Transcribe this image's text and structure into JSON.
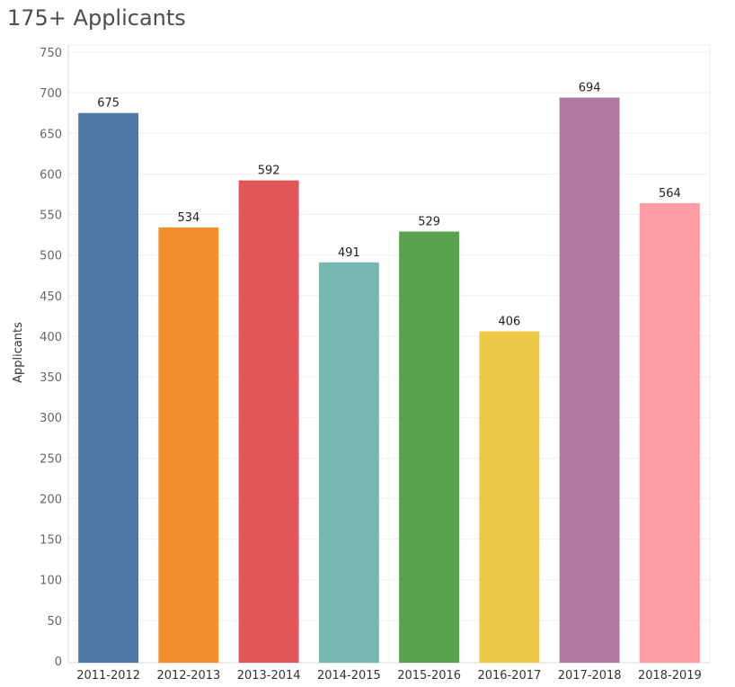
{
  "header": {
    "title": "175+ Applicants"
  },
  "chart_data": {
    "type": "bar",
    "title": "175+ Applicants",
    "xlabel": "",
    "ylabel": "Applicants",
    "ylim": [
      0,
      750
    ],
    "yticks": [
      0,
      50,
      100,
      150,
      200,
      250,
      300,
      350,
      400,
      450,
      500,
      550,
      600,
      650,
      700,
      750
    ],
    "grid": true,
    "categories": [
      "2011-2012",
      "2012-2013",
      "2013-2014",
      "2014-2015",
      "2015-2016",
      "2016-2017",
      "2017-2018",
      "2018-2019"
    ],
    "values": [
      675,
      534,
      592,
      491,
      529,
      406,
      694,
      564
    ],
    "colors": [
      "#4e79a7",
      "#f28e2b",
      "#e15759",
      "#76b7b2",
      "#59a14f",
      "#edc948",
      "#b07aa1",
      "#ff9da7"
    ],
    "data_labels": true
  }
}
